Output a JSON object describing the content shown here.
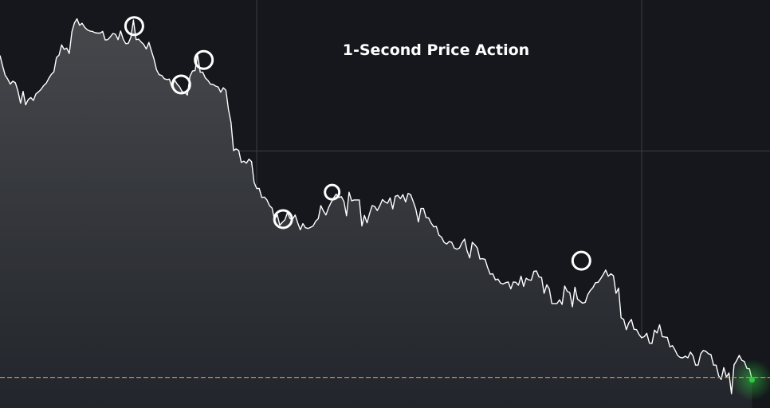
{
  "colors": {
    "background": "#15171c",
    "area_top": "#46484c",
    "area_bottom": "#22252b",
    "line": "#ffffff",
    "grid": "#3a3d44",
    "reference_line": "#e8822a",
    "live_marker": "#2ecc40",
    "highlight_circle": "#ffffff",
    "title": "#ffffff"
  },
  "chart_data": {
    "type": "area",
    "title": "1-Second Price Action",
    "xlabel": "",
    "ylabel": "",
    "x_range": [
      0,
      300
    ],
    "y_range": [
      0,
      100
    ],
    "grid": true,
    "grid_x": [
      100,
      250
    ],
    "grid_y": [
      63,
      7.5
    ],
    "legend": "none",
    "series": [
      {
        "x": [
          0,
          1,
          2,
          3,
          4,
          5,
          6,
          7,
          8,
          9,
          10,
          11,
          12,
          13,
          14,
          15,
          16,
          17,
          18,
          19,
          20,
          21,
          22,
          23,
          24,
          25,
          26,
          27,
          28,
          29,
          30,
          31,
          32,
          33,
          34,
          35,
          36,
          37,
          38,
          39,
          40,
          41,
          42,
          43,
          44,
          45,
          46,
          47,
          48,
          49,
          50,
          51,
          52,
          53,
          54,
          55,
          56,
          57,
          58,
          59,
          60,
          61,
          62,
          63,
          64,
          65,
          66,
          67,
          68,
          69,
          70,
          71,
          72,
          73,
          74,
          75,
          76,
          77,
          78,
          79,
          80,
          81,
          82,
          83,
          84,
          85,
          86,
          87,
          88,
          89,
          90,
          91,
          92,
          93,
          94,
          95,
          96,
          97,
          98,
          99,
          100,
          101,
          102,
          103,
          104,
          105,
          106,
          107,
          108,
          109,
          110,
          111,
          112,
          113,
          114,
          115,
          116,
          117,
          118,
          119,
          120,
          121,
          122,
          123,
          124,
          125,
          126,
          127,
          128,
          129,
          130,
          131,
          132,
          133,
          134,
          135,
          136,
          137,
          138,
          139,
          140,
          141,
          142,
          143,
          144,
          145,
          146,
          147,
          148,
          149,
          150,
          151,
          152,
          153,
          154,
          155,
          156,
          157,
          158,
          159,
          160,
          161,
          162,
          163,
          164,
          165,
          166,
          167,
          168,
          169,
          170,
          171,
          172,
          173,
          174,
          175,
          176,
          177,
          178,
          179,
          180,
          181,
          182,
          183,
          184,
          185,
          186,
          187,
          188,
          189,
          190,
          191,
          192,
          193,
          194,
          195,
          196,
          197,
          198,
          199,
          200,
          201,
          202,
          203,
          204,
          205,
          206,
          207,
          208,
          209,
          210,
          211,
          212,
          213,
          214,
          215,
          216,
          217,
          218,
          219,
          220,
          221,
          222,
          223,
          224,
          225,
          226,
          227,
          228,
          229,
          230,
          231,
          232,
          233,
          234,
          235,
          236,
          237,
          238,
          239,
          240,
          241,
          242,
          243,
          244,
          245,
          246,
          247,
          248,
          249,
          250,
          251,
          252,
          253,
          254,
          255,
          256,
          257,
          258,
          259,
          260,
          261,
          262,
          263,
          264,
          265,
          266,
          267,
          268,
          269,
          270,
          271,
          272,
          273,
          274,
          275,
          276,
          277,
          278,
          279,
          280,
          281,
          282,
          283,
          284,
          285,
          286,
          287,
          288,
          289,
          290,
          291,
          292,
          293
        ],
        "values": [
          86.4,
          83.9,
          81.6,
          80.6,
          79.4,
          80.1,
          79.7,
          77.7,
          74.7,
          77.6,
          74.3,
          75.6,
          76.1,
          75.4,
          77.0,
          77.5,
          78.1,
          79.0,
          79.6,
          80.8,
          81.8,
          82.4,
          85.9,
          86.5,
          89.0,
          87.9,
          88.2,
          86.9,
          92.2,
          94.4,
          95.4,
          93.8,
          94.3,
          93.3,
          92.7,
          92.4,
          92.3,
          92.0,
          91.9,
          91.9,
          92.3,
          90.2,
          90.3,
          91.0,
          91.8,
          91.6,
          90.3,
          92.4,
          90.4,
          89.3,
          89.4,
          90.9,
          95.1,
          90.3,
          90.4,
          89.7,
          89.1,
          88.0,
          89.6,
          87.5,
          85.5,
          82.9,
          81.7,
          81.5,
          80.7,
          80.5,
          80.6,
          78.6,
          80.4,
          79.4,
          78.7,
          77.5,
          77.4,
          76.7,
          81.3,
          82.6,
          82.7,
          86.6,
          82.3,
          82.3,
          80.9,
          80.3,
          79.4,
          79.3,
          78.9,
          78.7,
          77.4,
          78.5,
          77.9,
          73.2,
          70.0,
          63.1,
          63.5,
          63.1,
          60.2,
          60.5,
          60.0,
          61.0,
          60.4,
          55.3,
          53.8,
          53.8,
          51.6,
          51.7,
          51.0,
          49.6,
          49.0,
          46.2,
          47.4,
          44.8,
          45.5,
          46.1,
          47.9,
          46.4,
          46.3,
          47.3,
          45.4,
          43.7,
          45.2,
          44.2,
          44.0,
          44.3,
          44.6,
          45.8,
          46.4,
          49.6,
          48.3,
          47.3,
          49.1,
          50.4,
          51.5,
          52.4,
          51.6,
          51.8,
          50.6,
          47.1,
          52.9,
          50.8,
          51.0,
          51.0,
          51.0,
          44.6,
          47.2,
          45.4,
          47.7,
          49.6,
          49.4,
          48.4,
          49.6,
          51.1,
          50.5,
          50.2,
          51.5,
          48.8,
          51.9,
          52.1,
          51.3,
          52.3,
          50.5,
          52.6,
          52.3,
          50.6,
          48.8,
          45.6,
          48.9,
          48.9,
          46.7,
          46.6,
          45.3,
          44.4,
          44.5,
          42.4,
          41.9,
          40.6,
          40.2,
          40.8,
          40.6,
          39.2,
          38.9,
          39.2,
          40.5,
          41.4,
          38.5,
          36.8,
          40.6,
          40.0,
          39.2,
          36.5,
          36.6,
          36.4,
          34.4,
          32.8,
          32.9,
          31.4,
          31.6,
          30.6,
          30.4,
          30.7,
          30.9,
          29.2,
          30.9,
          30.8,
          30.1,
          32.3,
          29.8,
          31.8,
          31.4,
          31.3,
          33.5,
          33.6,
          32.1,
          32.0,
          28.1,
          30.2,
          29.2,
          25.6,
          25.6,
          25.6,
          26.5,
          25.4,
          29.9,
          28.6,
          28.3,
          24.8,
          29.6,
          26.7,
          26.2,
          25.7,
          25.9,
          27.8,
          28.8,
          29.5,
          30.7,
          30.8,
          31.7,
          32.7,
          33.8,
          32.3,
          32.9,
          32.4,
          28.1,
          29.4,
          22.1,
          21.7,
          19.2,
          20.9,
          21.7,
          19.3,
          19.2,
          18.0,
          17.2,
          17.5,
          18.3,
          15.9,
          15.8,
          19.1,
          18.4,
          20.4,
          17.5,
          17.4,
          17.3,
          15.0,
          15.3,
          14.2,
          12.9,
          12.4,
          12.3,
          12.7,
          12.3,
          13.7,
          12.8,
          10.5,
          10.5,
          13.3,
          14.1,
          13.9,
          13.3,
          13.1,
          10.5,
          10.5,
          7.9,
          7.0,
          9.9,
          7.6,
          8.6,
          3.5,
          10.6,
          11.6,
          12.9,
          11.7,
          11.4,
          9.7,
          9.6,
          6.9
        ]
      }
    ],
    "reference_lines": [
      {
        "axis": "y",
        "value": 7.5,
        "style": "dashed"
      }
    ],
    "annotations": [
      {
        "shape": "circle",
        "x": 52.3,
        "y": 93.6
      },
      {
        "shape": "circle",
        "x": 70.6,
        "y": 79.3
      },
      {
        "shape": "circle",
        "x": 79.4,
        "y": 85.3
      },
      {
        "shape": "circle",
        "x": 110.3,
        "y": 46.3
      },
      {
        "shape": "circle",
        "x": 129.4,
        "y": 52.9
      },
      {
        "shape": "circle",
        "x": 226.5,
        "y": 36.1
      }
    ],
    "live_marker": {
      "x": 293,
      "y": 6.9
    }
  }
}
